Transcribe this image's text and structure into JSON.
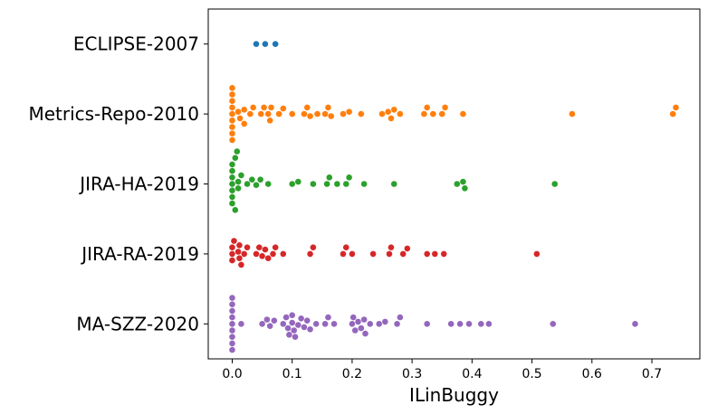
{
  "chart_data": {
    "type": "scatter",
    "subtype": "swarm",
    "xlabel": "ILinBuggy",
    "ylabel": "",
    "xlim": [
      -0.04,
      0.78
    ],
    "x_ticks": [
      "0.0",
      "0.1",
      "0.2",
      "0.3",
      "0.4",
      "0.5",
      "0.6",
      "0.7"
    ],
    "x_tick_values": [
      0.0,
      0.1,
      0.2,
      0.3,
      0.4,
      0.5,
      0.6,
      0.7
    ],
    "categories": [
      "ECLIPSE-2007",
      "Metrics-Repo-2010",
      "JIRA-HA-2019",
      "JIRA-RA-2019",
      "MA-SZZ-2020"
    ],
    "grid": false,
    "series": [
      {
        "color": "#1f77b4",
        "values": [
          0.04,
          0.055,
          0.072
        ]
      },
      {
        "color": "#ff7f0e",
        "values": [
          0.0,
          0.0,
          0.0,
          0.0,
          0.0,
          0.0,
          0.0,
          0.0,
          0.0,
          0.01,
          0.013,
          0.02,
          0.02,
          0.03,
          0.035,
          0.048,
          0.053,
          0.06,
          0.063,
          0.065,
          0.078,
          0.085,
          0.1,
          0.12,
          0.125,
          0.13,
          0.142,
          0.155,
          0.16,
          0.165,
          0.185,
          0.195,
          0.215,
          0.25,
          0.26,
          0.265,
          0.27,
          0.28,
          0.32,
          0.325,
          0.335,
          0.35,
          0.355,
          0.385,
          0.567,
          0.735,
          0.74
        ]
      },
      {
        "color": "#2ca02c",
        "values": [
          0.0,
          0.0,
          0.0,
          0.0,
          0.0,
          0.0,
          0.0,
          0.005,
          0.005,
          0.008,
          0.01,
          0.01,
          0.015,
          0.025,
          0.033,
          0.04,
          0.047,
          0.06,
          0.1,
          0.11,
          0.135,
          0.158,
          0.162,
          0.175,
          0.19,
          0.195,
          0.22,
          0.27,
          0.375,
          0.385,
          0.388,
          0.538
        ]
      },
      {
        "color": "#d62728",
        "values": [
          0.0,
          0.0,
          0.0,
          0.003,
          0.01,
          0.012,
          0.012,
          0.015,
          0.02,
          0.025,
          0.04,
          0.045,
          0.05,
          0.055,
          0.06,
          0.068,
          0.072,
          0.085,
          0.13,
          0.135,
          0.185,
          0.19,
          0.2,
          0.235,
          0.262,
          0.265,
          0.285,
          0.292,
          0.325,
          0.338,
          0.353,
          0.508
        ]
      },
      {
        "color": "#9467bd",
        "values": [
          0.0,
          0.0,
          0.0,
          0.0,
          0.0,
          0.0,
          0.0,
          0.0,
          0.0,
          0.015,
          0.05,
          0.058,
          0.063,
          0.07,
          0.085,
          0.09,
          0.093,
          0.095,
          0.1,
          0.1,
          0.103,
          0.105,
          0.11,
          0.115,
          0.12,
          0.125,
          0.13,
          0.14,
          0.155,
          0.16,
          0.17,
          0.2,
          0.202,
          0.205,
          0.21,
          0.215,
          0.22,
          0.222,
          0.23,
          0.245,
          0.255,
          0.275,
          0.28,
          0.325,
          0.365,
          0.38,
          0.395,
          0.415,
          0.428,
          0.535,
          0.672
        ]
      }
    ]
  }
}
